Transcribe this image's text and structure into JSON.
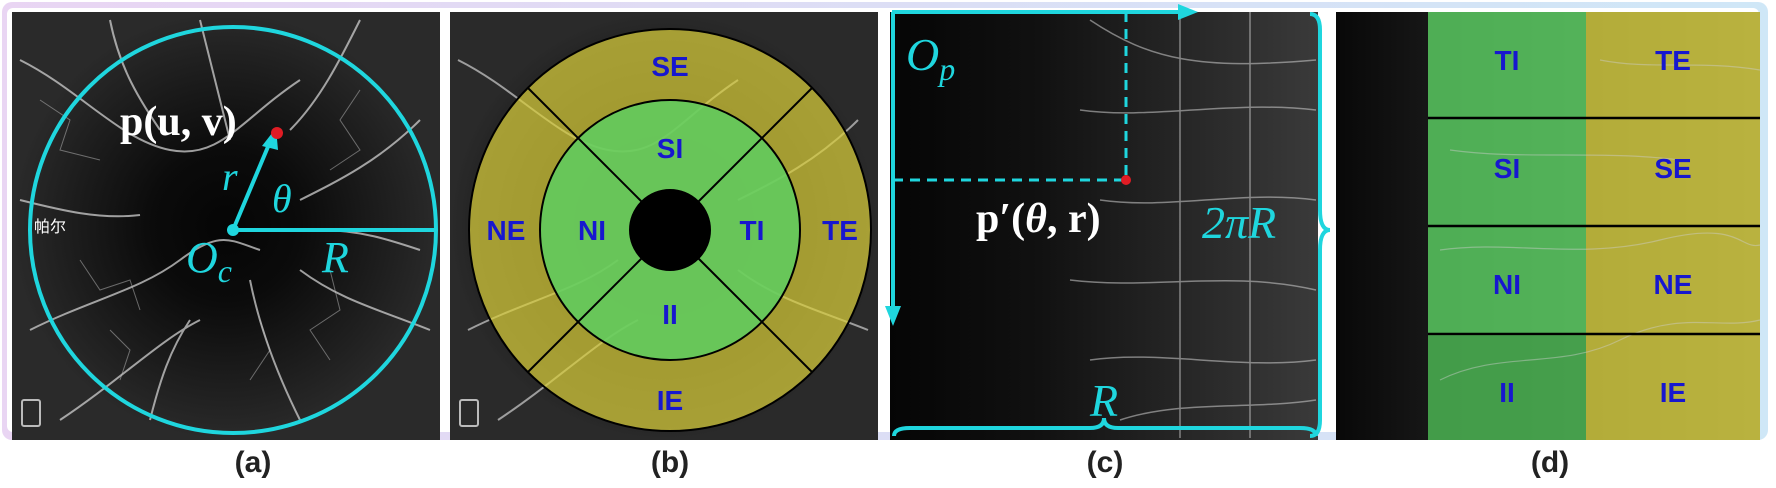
{
  "panels": {
    "a": {
      "caption": "(a)",
      "point_label": "p(u, v)",
      "radius_symbol": "r",
      "angle_symbol": "θ",
      "center_base": "O",
      "center_sub": "c",
      "big_radius": "R",
      "watermark": "帕尔"
    },
    "b": {
      "caption": "(b)",
      "regions": {
        "SE": "SE",
        "SI": "SI",
        "NE": "NE",
        "NI": "NI",
        "TI": "TI",
        "TE": "TE",
        "II": "II",
        "IE": "IE"
      }
    },
    "c": {
      "caption": "(c)",
      "origin_base": "O",
      "origin_sub": "p",
      "point_prefix": "p′(",
      "point_theta": "θ",
      "point_suffix": ", r)",
      "height_label": "2πR",
      "width_label": "R"
    },
    "d": {
      "caption": "(d)",
      "rows": [
        {
          "left": "TI",
          "right": "TE"
        },
        {
          "left": "SI",
          "right": "SE"
        },
        {
          "left": "NI",
          "right": "NE"
        },
        {
          "left": "II",
          "right": "IE"
        }
      ]
    }
  },
  "colors": {
    "accent": "#1fd6de",
    "point": "#e01c24",
    "inner_green": "#5ccf63",
    "outer_yellow": "#d9cf3c",
    "label_blue": "#1717cf"
  }
}
